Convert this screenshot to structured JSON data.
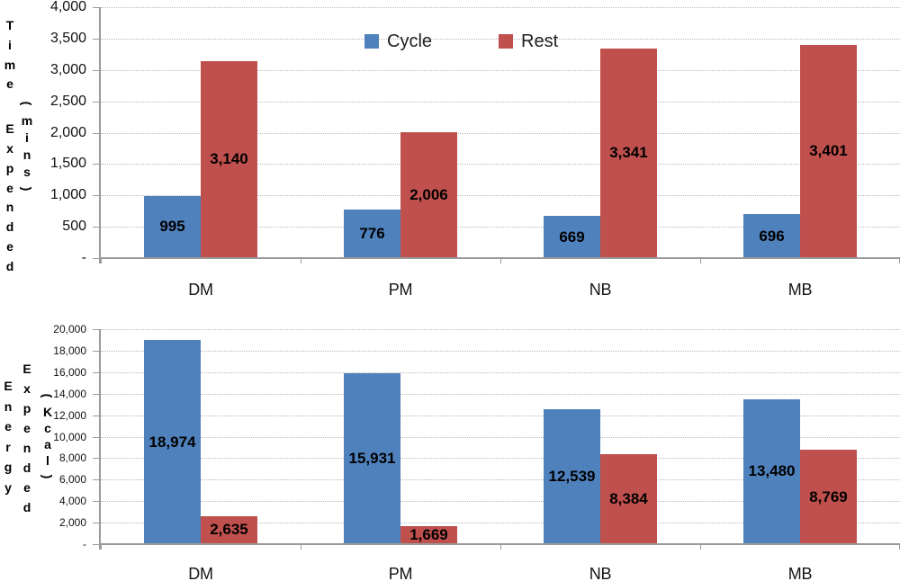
{
  "figure": {
    "background": "#ffffff",
    "series_colors": {
      "cycle": "#4f81bd",
      "rest": "#c0504d"
    },
    "grid_color": "#b8b8b8",
    "axis_color": "#9a9a9a"
  },
  "legend": {
    "items": [
      {
        "label": "Cycle",
        "color": "#4f81bd"
      },
      {
        "label": "Rest",
        "color": "#c0504d"
      }
    ]
  },
  "chart_data": [
    {
      "type": "bar",
      "name": "time-expended-chart",
      "title": "",
      "ylabel": "Time Expended (mins)",
      "ylabel_columns": [
        "Time Expended",
        "(mins)"
      ],
      "xlabel": "",
      "categories": [
        "DM",
        "PM",
        "NB",
        "MB"
      ],
      "series": [
        {
          "name": "Cycle",
          "color": "#4f81bd",
          "values": [
            995,
            776,
            669,
            696
          ],
          "data_labels": [
            "995",
            "776",
            "669",
            "696"
          ]
        },
        {
          "name": "Rest",
          "color": "#c0504d",
          "values": [
            3140,
            2006,
            3341,
            3401
          ],
          "data_labels": [
            "3,140",
            "2,006",
            "3,341",
            "3,401"
          ]
        }
      ],
      "ylim": [
        0,
        4000
      ],
      "ytick_step": 500,
      "ytick_labels_top_down": [
        "4,000",
        "3,500",
        "3,000",
        "2,500",
        "2,000",
        "1,500",
        "1,000",
        "500",
        "-"
      ],
      "grid": true,
      "legend_position": "top-center"
    },
    {
      "type": "bar",
      "name": "energy-expended-chart",
      "title": "",
      "ylabel": "Energy Expended (Kcal)",
      "ylabel_columns": [
        "Energy",
        "Expended",
        "(Kcal)"
      ],
      "xlabel": "",
      "categories": [
        "DM",
        "PM",
        "NB",
        "MB"
      ],
      "series": [
        {
          "name": "Cycle",
          "color": "#4f81bd",
          "values": [
            18974,
            15931,
            12539,
            13480
          ],
          "data_labels": [
            "18,974",
            "15,931",
            "12,539",
            "13,480"
          ]
        },
        {
          "name": "Rest",
          "color": "#c0504d",
          "values": [
            2635,
            1669,
            8384,
            8769
          ],
          "data_labels": [
            "2,635",
            "1,669",
            "8,384",
            "8,769"
          ]
        }
      ],
      "ylim": [
        0,
        20000
      ],
      "ytick_step": 2000,
      "ytick_labels_top_down": [
        "20,000",
        "18,000",
        "16,000",
        "14,000",
        "12,000",
        "10,000",
        "8,000",
        "6,000",
        "4,000",
        "2,000",
        "-"
      ],
      "grid": true,
      "legend_position": "none"
    }
  ]
}
